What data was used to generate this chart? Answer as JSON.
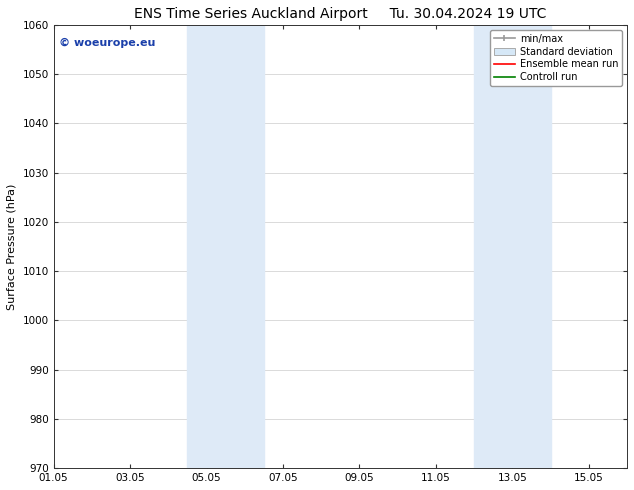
{
  "title_left": "ENS Time Series Auckland Airport",
  "title_right": "Tu. 30.04.2024 19 UTC",
  "ylabel": "Surface Pressure (hPa)",
  "ylim": [
    970,
    1060
  ],
  "yticks": [
    970,
    980,
    990,
    1000,
    1010,
    1020,
    1030,
    1040,
    1050,
    1060
  ],
  "xlim_start": 0,
  "xlim_end": 15,
  "xtick_positions": [
    0,
    2,
    4,
    6,
    8,
    10,
    12,
    14
  ],
  "xtick_labels": [
    "01.05",
    "03.05",
    "05.05",
    "07.05",
    "09.05",
    "11.05",
    "13.05",
    "15.05"
  ],
  "shaded_bands": [
    {
      "x_start": 3.5,
      "x_end": 5.5
    },
    {
      "x_start": 11.0,
      "x_end": 13.0
    }
  ],
  "shaded_color": "#deeaf7",
  "watermark_text": "© woeurope.eu",
  "watermark_color": "#1a3faa",
  "legend_entries": [
    {
      "label": "min/max",
      "color": "#aaaaaa",
      "type": "hline_with_caps"
    },
    {
      "label": "Standard deviation",
      "color": "#ccddee",
      "type": "filled_box"
    },
    {
      "label": "Ensemble mean run",
      "color": "red",
      "type": "line"
    },
    {
      "label": "Controll run",
      "color": "green",
      "type": "line"
    }
  ],
  "background_color": "#ffffff",
  "grid_color": "#cccccc",
  "title_fontsize": 10,
  "axis_label_fontsize": 8,
  "tick_fontsize": 7.5
}
